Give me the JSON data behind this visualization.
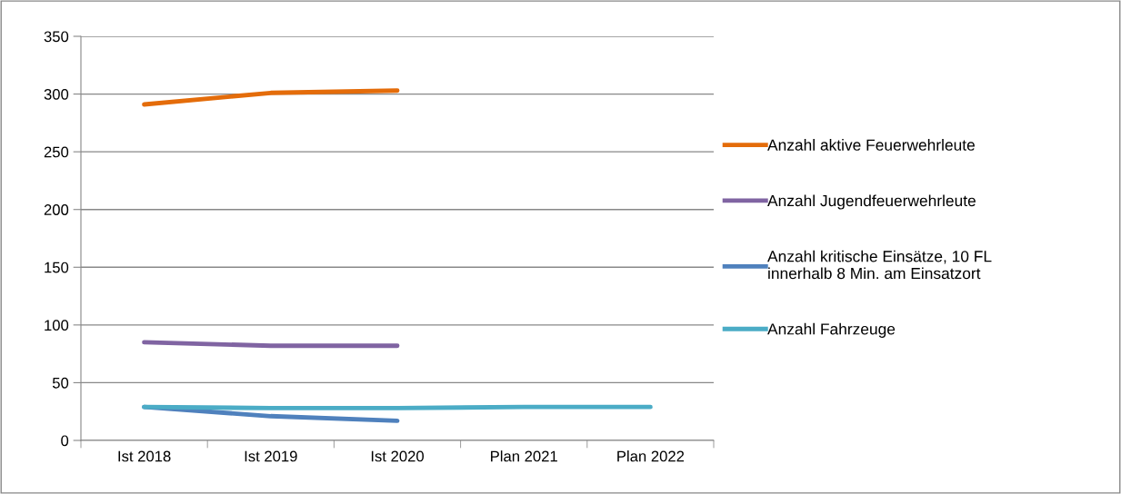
{
  "chart_data": {
    "type": "line",
    "categories": [
      "Ist 2018",
      "Ist 2019",
      "Ist 2020",
      "Plan 2021",
      "Plan 2022"
    ],
    "series": [
      {
        "name": "Anzahl aktive Feuerwehrleute",
        "color": "#e46c0a",
        "values": [
          291,
          301,
          303,
          null,
          null
        ]
      },
      {
        "name": "Anzahl Jugendfeuerwehrleute",
        "color": "#8064a2",
        "values": [
          85,
          82,
          82,
          null,
          null
        ]
      },
      {
        "name": "Anzahl kritische Einsätze, 10 FL\ninnerhalb 8 Min. am Einsatzort",
        "color": "#4f81bd",
        "values": [
          29,
          21,
          17,
          null,
          null
        ]
      },
      {
        "name": "Anzahl Fahrzeuge",
        "color": "#4bacc6",
        "values": [
          29,
          28,
          28,
          29,
          29
        ]
      }
    ],
    "ylim": [
      0,
      350
    ],
    "yticks": [
      0,
      50,
      100,
      150,
      200,
      250,
      300,
      350
    ],
    "grid": "y",
    "legend": "right",
    "marker": "none",
    "line_style": "solid"
  }
}
